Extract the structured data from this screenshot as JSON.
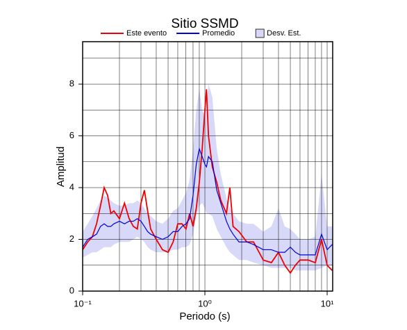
{
  "chart_data": {
    "type": "line",
    "title": "Sitio SSMD",
    "x_label": "Periodo (s)",
    "y_label": "Amplitud",
    "x_scale": "log",
    "x": [
      0.1,
      0.11,
      0.12,
      0.13,
      0.14,
      0.15,
      0.16,
      0.17,
      0.18,
      0.2,
      0.22,
      0.24,
      0.26,
      0.28,
      0.3,
      0.32,
      0.34,
      0.36,
      0.4,
      0.45,
      0.5,
      0.55,
      0.6,
      0.65,
      0.7,
      0.75,
      0.8,
      0.85,
      0.9,
      0.95,
      1.0,
      1.03,
      1.07,
      1.15,
      1.25,
      1.35,
      1.5,
      1.6,
      1.7,
      1.9,
      2.2,
      2.5,
      3.0,
      3.5,
      4.0,
      4.5,
      5.0,
      5.5,
      6.0,
      7.0,
      8,
      9,
      10,
      11
    ],
    "series": [
      {
        "name": "Este evento",
        "color": "#ee0000",
        "values": [
          1.6,
          1.9,
          2.1,
          2.6,
          3.3,
          4.0,
          3.7,
          3.0,
          3.1,
          2.8,
          3.4,
          2.8,
          2.5,
          2.4,
          3.4,
          3.9,
          3.1,
          2.4,
          2.0,
          1.6,
          1.5,
          1.9,
          2.6,
          2.6,
          2.4,
          3.0,
          2.5,
          3.2,
          4.2,
          5.5,
          7.0,
          7.8,
          6.0,
          4.8,
          4.2,
          3.5,
          3.0,
          4.0,
          2.5,
          2.3,
          1.9,
          1.9,
          1.2,
          1.1,
          1.5,
          1.0,
          0.7,
          1.0,
          1.2,
          1.2,
          1.1,
          2.0,
          1.0,
          0.8
        ]
      },
      {
        "name": "Promedio",
        "color": "#0000dd",
        "values": [
          1.7,
          2.0,
          2.1,
          2.2,
          2.5,
          2.6,
          2.5,
          2.5,
          2.6,
          2.7,
          2.6,
          2.7,
          2.7,
          2.8,
          2.7,
          2.5,
          2.3,
          2.2,
          2.1,
          2.0,
          2.1,
          2.3,
          2.3,
          2.5,
          2.6,
          2.8,
          3.7,
          4.9,
          5.5,
          5.2,
          4.9,
          4.8,
          5.2,
          5.0,
          3.9,
          3.4,
          2.7,
          2.4,
          2.2,
          1.9,
          1.9,
          1.8,
          1.6,
          1.6,
          1.5,
          1.5,
          1.7,
          1.5,
          1.4,
          1.4,
          1.4,
          2.2,
          1.6,
          1.8
        ]
      },
      {
        "name": "Desv. Est.",
        "color": "#d8d8f8",
        "upper": [
          2.3,
          2.6,
          2.9,
          3.2,
          3.5,
          3.7,
          3.6,
          3.5,
          3.4,
          3.3,
          3.3,
          3.4,
          3.4,
          3.5,
          3.4,
          3.2,
          3.0,
          2.9,
          2.7,
          2.6,
          2.8,
          3.1,
          3.2,
          3.5,
          3.8,
          4.3,
          5.5,
          7.0,
          7.8,
          7.0,
          6.8,
          7.2,
          8.0,
          7.5,
          5.5,
          4.5,
          3.6,
          3.2,
          3.0,
          2.7,
          2.6,
          2.6,
          2.3,
          2.5,
          3.2,
          2.5,
          2.4,
          2.2,
          2.0,
          2.0,
          2.1,
          4.5,
          2.5,
          2.5
        ],
        "lower": [
          1.3,
          1.4,
          1.5,
          1.5,
          1.6,
          1.7,
          1.7,
          1.7,
          1.8,
          1.9,
          1.9,
          1.9,
          2.0,
          2.1,
          2.0,
          1.9,
          1.7,
          1.6,
          1.5,
          1.5,
          1.5,
          1.6,
          1.6,
          1.7,
          1.7,
          1.8,
          2.2,
          2.9,
          3.3,
          3.4,
          3.2,
          3.0,
          3.0,
          2.9,
          2.4,
          2.1,
          1.7,
          1.5,
          1.4,
          1.2,
          1.2,
          1.1,
          1.0,
          0.9,
          0.9,
          0.9,
          0.9,
          0.8,
          0.8,
          0.8,
          0.8,
          0.9,
          1.0,
          1.0
        ]
      }
    ],
    "xlim": [
      0.1,
      11.1
    ],
    "ylim": [
      0,
      9.64
    ],
    "xticks": [
      {
        "value": 0.1,
        "label": "10⁻¹"
      },
      {
        "value": 1,
        "label": "10⁰"
      },
      {
        "value": 10,
        "label": "10¹"
      }
    ],
    "yticks": [
      0,
      2,
      4,
      6,
      8
    ],
    "xgrid": [
      0.1,
      0.2,
      0.3,
      0.4,
      0.5,
      0.6,
      0.7,
      0.8,
      0.9,
      1,
      2,
      3,
      4,
      5,
      6,
      7,
      8,
      9,
      10
    ],
    "ygrid": [
      1,
      2,
      3,
      4,
      5,
      6,
      7,
      8,
      9
    ],
    "legend": "top"
  }
}
